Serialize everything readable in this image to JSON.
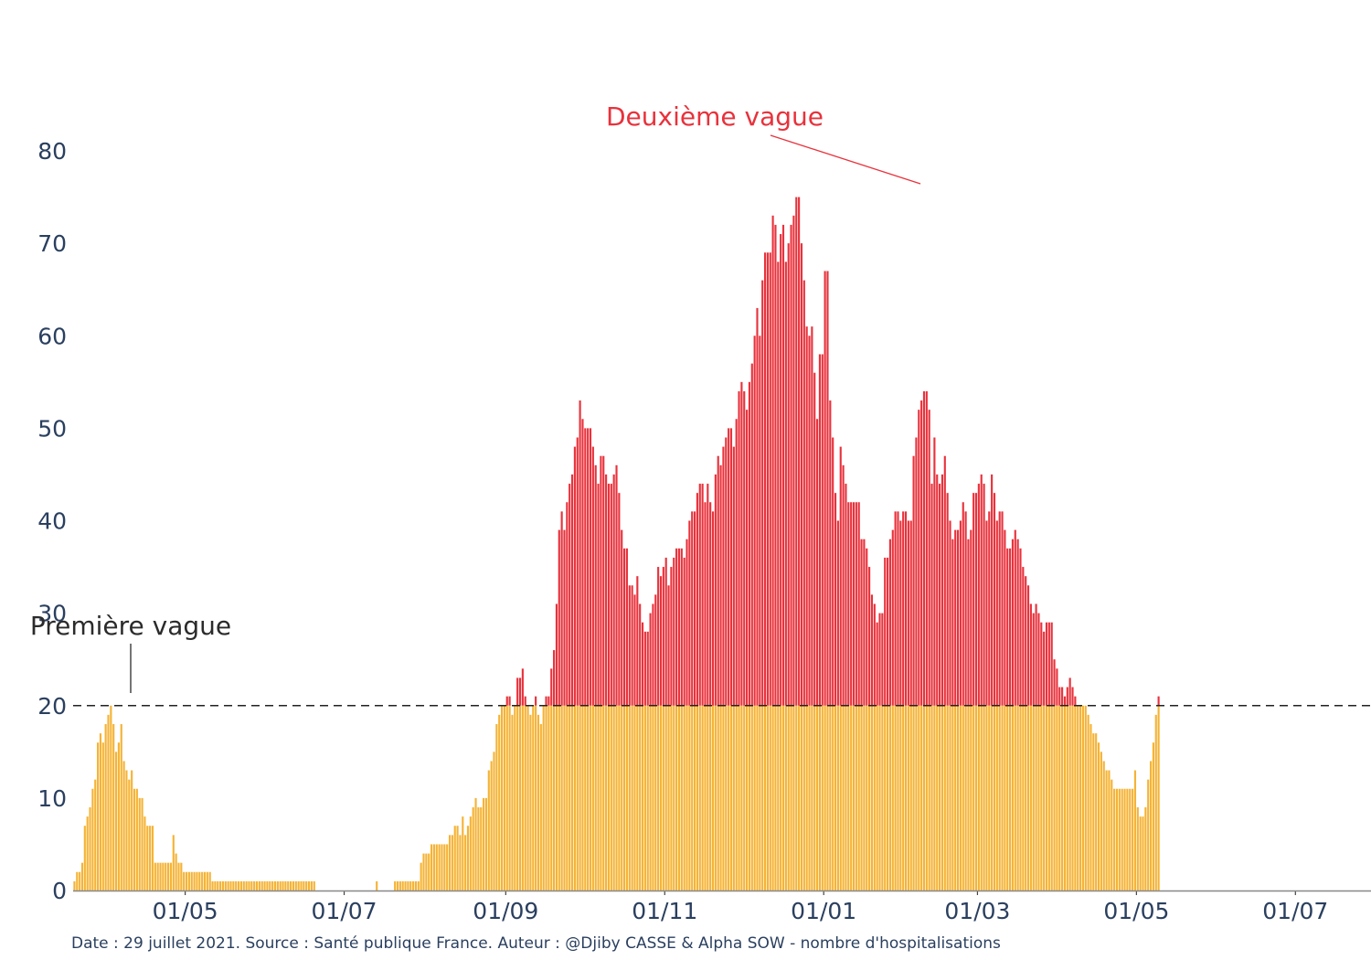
{
  "chart_data": {
    "type": "bar",
    "mode": "stacked",
    "start_date": "2020-03-19",
    "end_date": "2021-07-29",
    "threshold": 20,
    "colors": {
      "below": "#f5b335",
      "above": "#e8323c",
      "zero": "#888888"
    },
    "ylim": [
      0,
      80
    ],
    "yticks": [
      "0",
      "10",
      "20",
      "30",
      "40",
      "50",
      "60",
      "70",
      "80"
    ],
    "xticks": [
      {
        "date": "2020-05-01",
        "label": "01/05"
      },
      {
        "date": "2020-07-01",
        "label": "01/07"
      },
      {
        "date": "2020-09-01",
        "label": "01/09"
      },
      {
        "date": "2020-11-01",
        "label": "01/11"
      },
      {
        "date": "2021-01-01",
        "label": "01/01"
      },
      {
        "date": "2021-03-01",
        "label": "01/03"
      },
      {
        "date": "2021-05-01",
        "label": "01/05"
      },
      {
        "date": "2021-07-01",
        "label": "01/07"
      }
    ],
    "values": [
      1,
      2,
      2,
      3,
      7,
      8,
      9,
      11,
      12,
      16,
      17,
      16,
      18,
      19,
      20,
      18,
      15,
      16,
      18,
      14,
      13,
      12,
      13,
      11,
      11,
      10,
      10,
      8,
      7,
      7,
      7,
      3,
      3,
      3,
      3,
      3,
      3,
      3,
      6,
      4,
      3,
      3,
      2,
      2,
      2,
      2,
      2,
      2,
      2,
      2,
      2,
      2,
      2,
      1,
      1,
      1,
      1,
      1,
      1,
      1,
      1,
      1,
      1,
      1,
      1,
      1,
      1,
      1,
      1,
      1,
      1,
      1,
      1,
      1,
      1,
      1,
      1,
      1,
      1,
      1,
      1,
      1,
      1,
      1,
      1,
      1,
      1,
      1,
      1,
      1,
      1,
      1,
      1,
      0,
      0,
      0,
      0,
      0,
      0,
      0,
      0,
      0,
      0,
      0,
      0,
      0,
      0,
      0,
      0,
      0,
      0,
      0,
      0,
      0,
      0,
      0,
      1,
      0,
      0,
      0,
      0,
      0,
      0,
      1,
      1,
      1,
      1,
      1,
      1,
      1,
      1,
      1,
      1,
      3,
      4,
      4,
      4,
      5,
      5,
      5,
      5,
      5,
      5,
      5,
      6,
      6,
      7,
      7,
      6,
      8,
      6,
      7,
      8,
      9,
      10,
      9,
      9,
      10,
      10,
      13,
      14,
      15,
      18,
      19,
      20,
      20,
      21,
      21,
      19,
      20,
      23,
      23,
      24,
      21,
      20,
      19,
      20,
      21,
      19,
      18,
      20,
      21,
      21,
      24,
      26,
      31,
      39,
      41,
      39,
      42,
      44,
      45,
      48,
      49,
      53,
      51,
      50,
      50,
      50,
      48,
      46,
      44,
      47,
      47,
      45,
      44,
      44,
      45,
      46,
      43,
      39,
      37,
      37,
      33,
      33,
      32,
      34,
      31,
      29,
      28,
      28,
      30,
      31,
      32,
      35,
      34,
      35,
      36,
      33,
      35,
      36,
      37,
      37,
      37,
      36,
      38,
      40,
      41,
      41,
      43,
      44,
      44,
      42,
      44,
      42,
      41,
      45,
      47,
      46,
      48,
      49,
      50,
      50,
      48,
      51,
      54,
      55,
      54,
      52,
      55,
      57,
      60,
      63,
      60,
      66,
      69,
      69,
      69,
      73,
      72,
      68,
      71,
      72,
      68,
      70,
      72,
      73,
      75,
      75,
      70,
      66,
      61,
      60,
      61,
      56,
      51,
      58,
      58,
      67,
      67,
      53,
      49,
      43,
      40,
      48,
      46,
      44,
      42,
      42,
      42,
      42,
      42,
      38,
      38,
      37,
      35,
      32,
      31,
      29,
      30,
      30,
      36,
      36,
      38,
      39,
      41,
      41,
      40,
      41,
      41,
      40,
      40,
      47,
      49,
      52,
      53,
      54,
      54,
      52,
      44,
      49,
      45,
      44,
      45,
      47,
      43,
      40,
      38,
      39,
      39,
      40,
      42,
      41,
      38,
      39,
      43,
      43,
      44,
      45,
      44,
      40,
      41,
      45,
      43,
      40,
      41,
      41,
      39,
      37,
      37,
      38,
      39,
      38,
      37,
      35,
      34,
      33,
      31,
      30,
      31,
      30,
      29,
      28,
      29,
      29,
      29,
      25,
      24,
      22,
      22,
      21,
      22,
      23,
      22,
      21,
      20,
      20,
      20,
      20,
      19,
      18,
      17,
      17,
      16,
      15,
      14,
      13,
      13,
      12,
      11,
      11,
      11,
      11,
      11,
      11,
      11,
      11,
      13,
      9,
      8,
      8,
      9,
      12,
      14,
      16,
      19,
      21
    ]
  },
  "annotations": {
    "second_wave": "Deuxième vague",
    "first_wave": "Première vague"
  },
  "caption": "Date : 29 juillet 2021. Source : Santé publique France. Auteur : @Djiby CASSE & Alpha SOW - nombre d'hospitalisations"
}
